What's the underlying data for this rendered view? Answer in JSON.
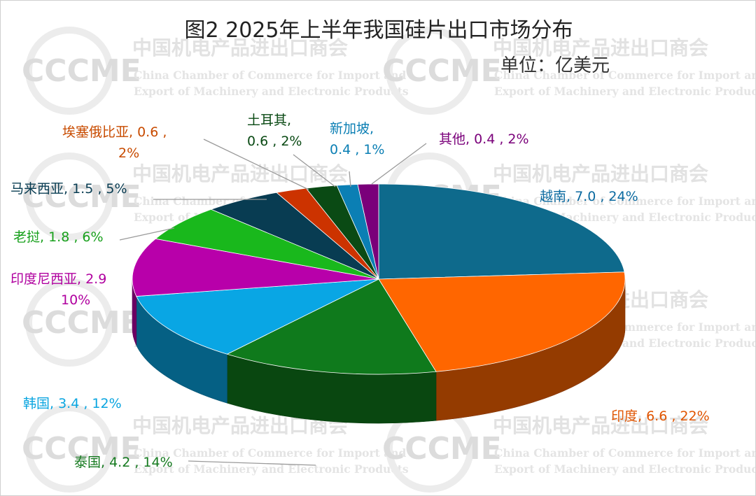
{
  "chart_data": {
    "type": "pie",
    "title": "图2  2025年上半年我国硅片出口市场分布",
    "unit": "单位：亿美元",
    "slices": [
      {
        "name": "越南",
        "value": 7.0,
        "percent": 24,
        "color": "#0e6a8c",
        "label_lines": [
          "越南, 7.0 , 24%"
        ]
      },
      {
        "name": "印度",
        "value": 6.6,
        "percent": 22,
        "color": "#ff6600",
        "label_lines": [
          "印度, 6.6 , 22%"
        ]
      },
      {
        "name": "泰国",
        "value": 4.2,
        "percent": 14,
        "color": "#0f7a1c",
        "label_lines": [
          "泰国, 4.2 , 14%"
        ]
      },
      {
        "name": "韩国",
        "value": 3.4,
        "percent": 12,
        "color": "#09a6e4",
        "label_lines": [
          "韩国, 3.4 , 12%"
        ]
      },
      {
        "name": "印度尼西亚",
        "value": 2.9,
        "percent": 10,
        "color": "#b800aa",
        "label_lines": [
          "印度尼西亚, 2.9",
          "10%"
        ]
      },
      {
        "name": "老挝",
        "value": 1.8,
        "percent": 6,
        "color": "#19b81c",
        "label_lines": [
          "老挝, 1.8 , 6%"
        ]
      },
      {
        "name": "马来西亚",
        "value": 1.5,
        "percent": 5,
        "color": "#083c52",
        "label_lines": [
          "马来西亚, 1.5 , 5%"
        ]
      },
      {
        "name": "埃塞俄比亚",
        "value": 0.6,
        "percent": 2,
        "color": "#cc3300",
        "label_lines": [
          "埃塞俄比亚, 0.6 ,",
          "2%"
        ]
      },
      {
        "name": "土耳其",
        "value": 0.6,
        "percent": 2,
        "color": "#0a4a14",
        "label_lines": [
          "土耳其,",
          "0.6 , 2%"
        ]
      },
      {
        "name": "新加坡",
        "value": 0.4,
        "percent": 1,
        "color": "#0b7fb4",
        "label_lines": [
          "新加坡,",
          "0.4 , 1%"
        ]
      },
      {
        "name": "其他",
        "value": 0.4,
        "percent": 2,
        "color": "#7a007a",
        "label_lines": [
          "其他, 0.4 , 2%"
        ]
      }
    ],
    "legend": "none",
    "style": "3d-pie"
  },
  "watermark": {
    "logo": "CCCME",
    "name_cn": "中国机电产品进出口商会",
    "name_en_line1": "China Chamber of Commerce for Import and",
    "name_en_line2": "Export of Machinery and Electronic Products"
  }
}
